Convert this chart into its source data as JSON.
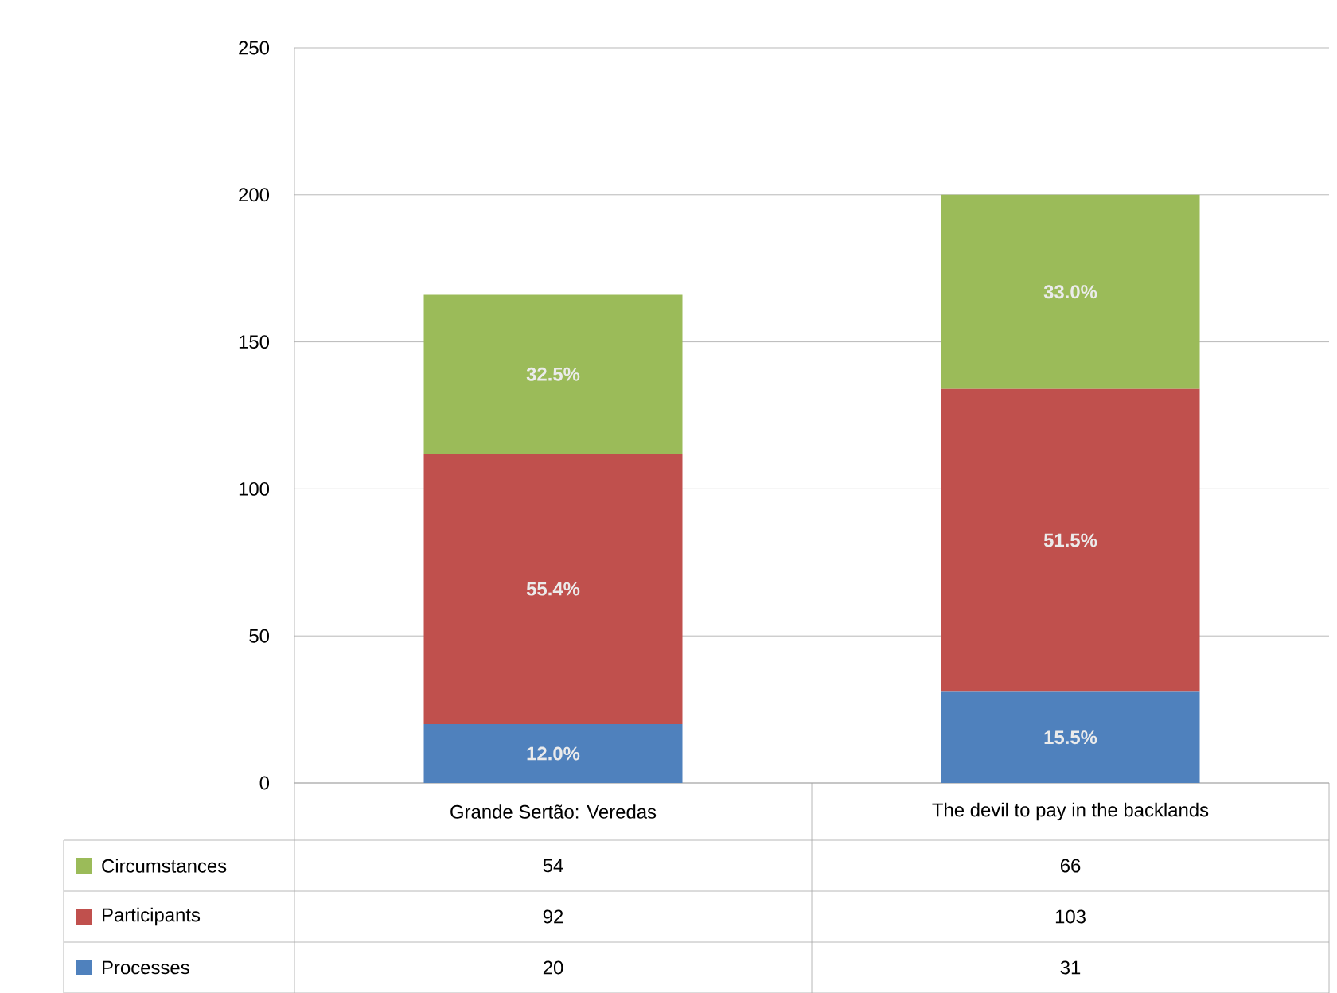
{
  "chart_data": {
    "type": "bar",
    "stacked": true,
    "categories": [
      "Grande Sertão: Veredas",
      "The devil to pay in the backlands"
    ],
    "series": [
      {
        "name": "Processes",
        "color": "#4f81bd",
        "values": [
          20,
          31
        ]
      },
      {
        "name": "Participants",
        "color": "#c0504d",
        "values": [
          92,
          103
        ]
      },
      {
        "name": "Circumstances",
        "color": "#9bbb59",
        "values": [
          54,
          66
        ]
      }
    ],
    "annotations": [
      "12.0%",
      "55.4%",
      "32.5%",
      "15.5%",
      "51.5%",
      "33.0%"
    ],
    "ylim": [
      0,
      250
    ],
    "yticks": [
      0,
      50,
      100,
      150,
      200,
      250
    ],
    "grid": "y",
    "legend": "bottom",
    "data_labels": true
  }
}
